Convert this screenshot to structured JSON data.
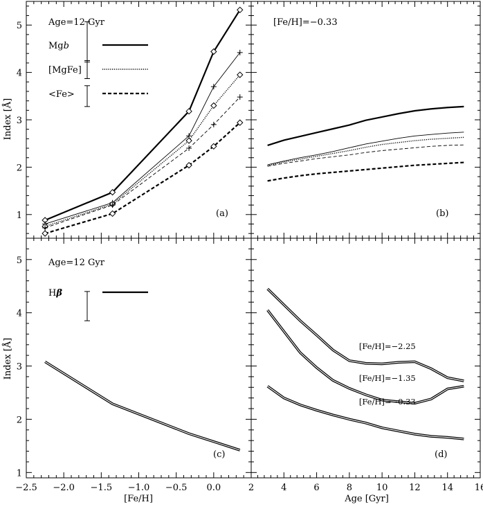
{
  "x_axis_left_label": "[Fe/H]",
  "x_axis_right_label": "Age [Gyr]",
  "y_axis_label": "Index [Å]",
  "chart_data": [
    {
      "id": "a",
      "type": "line",
      "panel_label": "(a)",
      "annotation": "Age=12 Gyr",
      "xlim": [
        -2.5,
        0.5
      ],
      "ylim": [
        0.5,
        5.5
      ],
      "xticks": [
        -2.5,
        -2.0,
        -1.5,
        -1.0,
        -0.5,
        0.0
      ],
      "xticklabels": [
        "",
        "",
        "",
        "",
        "",
        ""
      ],
      "yticks": [
        1,
        2,
        3,
        4,
        5
      ],
      "yticklabels": [
        "1",
        "2",
        "3",
        "4",
        "5"
      ],
      "ylabel": "Index [Å]",
      "legend": [
        {
          "label": "Mg",
          "label_italic": "b",
          "style": "thick-solid",
          "errbar": [
            4.22,
            5.07
          ]
        },
        {
          "label": "[MgFe]",
          "label_italic": "",
          "style": "dotted",
          "errbar": [
            3.87,
            4.25
          ]
        },
        {
          "label": "<Fe>",
          "label_italic": "",
          "style": "thick-dashed",
          "errbar": [
            3.28,
            3.72
          ]
        }
      ],
      "series": [
        {
          "name": "Mgb",
          "style": "thick-solid",
          "marker": "diamond",
          "x": [
            -2.25,
            -1.35,
            -0.33,
            0.0,
            0.35
          ],
          "y": [
            0.88,
            1.47,
            3.18,
            4.44,
            5.32
          ]
        },
        {
          "style": "thin-solid",
          "marker": "plus",
          "x": [
            -2.25,
            -1.35,
            -0.33,
            0.0,
            0.35
          ],
          "y": [
            0.8,
            1.25,
            2.66,
            3.7,
            4.42
          ]
        },
        {
          "name": "[MgFe]",
          "style": "dotted",
          "marker": "diamond",
          "x": [
            -2.25,
            -1.35,
            -0.33,
            0.0,
            0.35
          ],
          "y": [
            0.75,
            1.22,
            2.56,
            3.3,
            3.95
          ]
        },
        {
          "style": "thin-dashed",
          "marker": "plus",
          "x": [
            -2.25,
            -1.35,
            -0.33,
            0.0,
            0.35
          ],
          "y": [
            0.72,
            1.2,
            2.4,
            2.9,
            3.48
          ]
        },
        {
          "name": "<Fe>",
          "style": "thick-dashed",
          "marker": "diamond",
          "x": [
            -2.25,
            -1.35,
            -0.33,
            0.0,
            0.35
          ],
          "y": [
            0.6,
            1.02,
            2.04,
            2.44,
            2.94
          ]
        }
      ]
    },
    {
      "id": "b",
      "type": "line",
      "panel_label": "(b)",
      "annotation": "[Fe/H]=−0.33",
      "xlim": [
        2,
        16
      ],
      "ylim": [
        0.5,
        5.5
      ],
      "xticks": [
        2,
        4,
        6,
        8,
        10,
        12,
        14,
        16
      ],
      "xticklabels": [
        "",
        "",
        "",
        "",
        "",
        "",
        "",
        ""
      ],
      "yticks": [
        1,
        2,
        3,
        4,
        5
      ],
      "yticklabels": [
        "",
        "",
        "",
        "",
        ""
      ],
      "series": [
        {
          "style": "thick-solid",
          "x": [
            3,
            4,
            5,
            6,
            7,
            8,
            9,
            10,
            11,
            12,
            13,
            14,
            15
          ],
          "y": [
            2.46,
            2.57,
            2.65,
            2.73,
            2.81,
            2.89,
            2.99,
            3.06,
            3.13,
            3.19,
            3.23,
            3.26,
            3.28
          ]
        },
        {
          "style": "thin-solid",
          "x": [
            3,
            4,
            5,
            6,
            7,
            8,
            9,
            10,
            11,
            12,
            13,
            14,
            15
          ],
          "y": [
            2.05,
            2.13,
            2.2,
            2.26,
            2.33,
            2.41,
            2.49,
            2.55,
            2.61,
            2.66,
            2.69,
            2.72,
            2.74
          ]
        },
        {
          "style": "dotted",
          "x": [
            3,
            4,
            5,
            6,
            7,
            8,
            9,
            10,
            11,
            12,
            13,
            14,
            15
          ],
          "y": [
            2.03,
            2.11,
            2.17,
            2.23,
            2.29,
            2.35,
            2.42,
            2.48,
            2.52,
            2.56,
            2.59,
            2.61,
            2.63
          ]
        },
        {
          "style": "thin-dashed",
          "x": [
            3,
            4,
            5,
            6,
            7,
            8,
            9,
            10,
            11,
            12,
            13,
            14,
            15
          ],
          "y": [
            2.02,
            2.08,
            2.13,
            2.18,
            2.22,
            2.26,
            2.31,
            2.35,
            2.38,
            2.41,
            2.44,
            2.46,
            2.47
          ]
        },
        {
          "style": "thick-dashed",
          "x": [
            3,
            4,
            5,
            6,
            7,
            8,
            9,
            10,
            11,
            12,
            13,
            14,
            15
          ],
          "y": [
            1.71,
            1.77,
            1.82,
            1.86,
            1.89,
            1.92,
            1.95,
            1.98,
            2.01,
            2.04,
            2.06,
            2.08,
            2.1
          ]
        }
      ]
    },
    {
      "id": "c",
      "type": "line",
      "panel_label": "(c)",
      "annotation": "Age=12 Gyr",
      "xlim": [
        -2.5,
        0.5
      ],
      "ylim": [
        0.9,
        5.4
      ],
      "xticks": [
        -2.5,
        -2.0,
        -1.5,
        -1.0,
        -0.5,
        0.0
      ],
      "xticklabels": [
        "−2.5",
        "−2.0",
        "−1.5",
        "−1.0",
        "−0.5",
        "0.0"
      ],
      "yticks": [
        1,
        2,
        3,
        4,
        5
      ],
      "yticklabels": [
        "1",
        "2",
        "3",
        "4",
        "5"
      ],
      "ylabel": "Index [Å]",
      "legend": [
        {
          "label": "H",
          "label_symbol": "β",
          "style": "double",
          "errbar": [
            3.85,
            4.4
          ]
        }
      ],
      "series": [
        {
          "name": "Hβ",
          "style": "double",
          "x": [
            -2.25,
            -1.35,
            -0.33,
            0.0,
            0.35
          ],
          "y": [
            3.08,
            2.29,
            1.73,
            1.58,
            1.42
          ]
        }
      ]
    },
    {
      "id": "d",
      "type": "line",
      "panel_label": "(d)",
      "xlim": [
        2,
        16
      ],
      "ylim": [
        0.9,
        5.4
      ],
      "xticks": [
        2,
        4,
        6,
        8,
        10,
        12,
        14,
        16
      ],
      "xticklabels": [
        "2",
        "4",
        "6",
        "8",
        "10",
        "12",
        "14",
        "16"
      ],
      "yticks": [
        1,
        2,
        3,
        4,
        5
      ],
      "yticklabels": [
        "",
        "",
        "",
        "",
        ""
      ],
      "series": [
        {
          "name": "[Fe/H]=−2.25",
          "style": "double",
          "label_at": [
            8.0,
            3.32
          ],
          "x": [
            3,
            4,
            5,
            6,
            7,
            8,
            9,
            10,
            11,
            12,
            13,
            14,
            15
          ],
          "y": [
            4.45,
            4.15,
            3.85,
            3.58,
            3.3,
            3.1,
            3.05,
            3.04,
            3.07,
            3.08,
            2.95,
            2.78,
            2.72
          ]
        },
        {
          "name": "[Fe/H]=−1.35",
          "style": "double",
          "label_at": [
            8.0,
            2.72
          ],
          "x": [
            3,
            4,
            5,
            6,
            7,
            8,
            9,
            10,
            11,
            12,
            13,
            14,
            15
          ],
          "y": [
            4.05,
            3.65,
            3.25,
            2.97,
            2.73,
            2.58,
            2.46,
            2.36,
            2.33,
            2.3,
            2.38,
            2.57,
            2.62
          ]
        },
        {
          "name": "[Fe/H]=−0.33",
          "style": "double",
          "label_at": [
            8.0,
            2.28
          ],
          "x": [
            3,
            4,
            5,
            6,
            7,
            8,
            9,
            10,
            11,
            12,
            13,
            14,
            15
          ],
          "y": [
            2.62,
            2.4,
            2.27,
            2.17,
            2.08,
            2.0,
            1.93,
            1.84,
            1.78,
            1.72,
            1.68,
            1.66,
            1.63
          ]
        }
      ]
    }
  ]
}
